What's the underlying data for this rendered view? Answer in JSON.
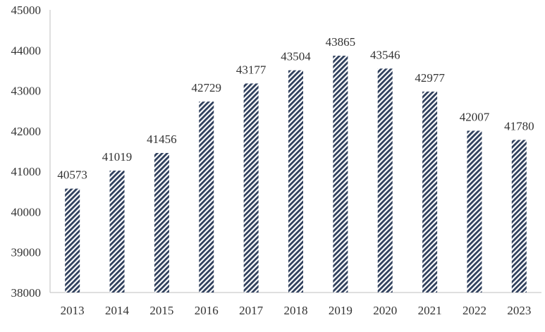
{
  "chart_data": {
    "type": "bar",
    "categories": [
      "2013",
      "2014",
      "2015",
      "2016",
      "2017",
      "2018",
      "2019",
      "2020",
      "2021",
      "2022",
      "2023"
    ],
    "values": [
      40573,
      41019,
      41456,
      42729,
      43177,
      43504,
      43865,
      43546,
      42977,
      42007,
      41780
    ],
    "data_labels": [
      "40573",
      "41019",
      "41456",
      "42729",
      "43177",
      "43504",
      "43865",
      "43546",
      "42977",
      "42007",
      "41780"
    ],
    "y_ticks": [
      "38000",
      "39000",
      "40000",
      "41000",
      "42000",
      "43000",
      "44000",
      "45000"
    ],
    "ylim": [
      38000,
      45000
    ],
    "title": "",
    "xlabel": "",
    "ylabel": "",
    "grid": false,
    "legend": "none",
    "bar_pattern": "diagonal-hatch",
    "bar_color": "#2f3f5c"
  }
}
